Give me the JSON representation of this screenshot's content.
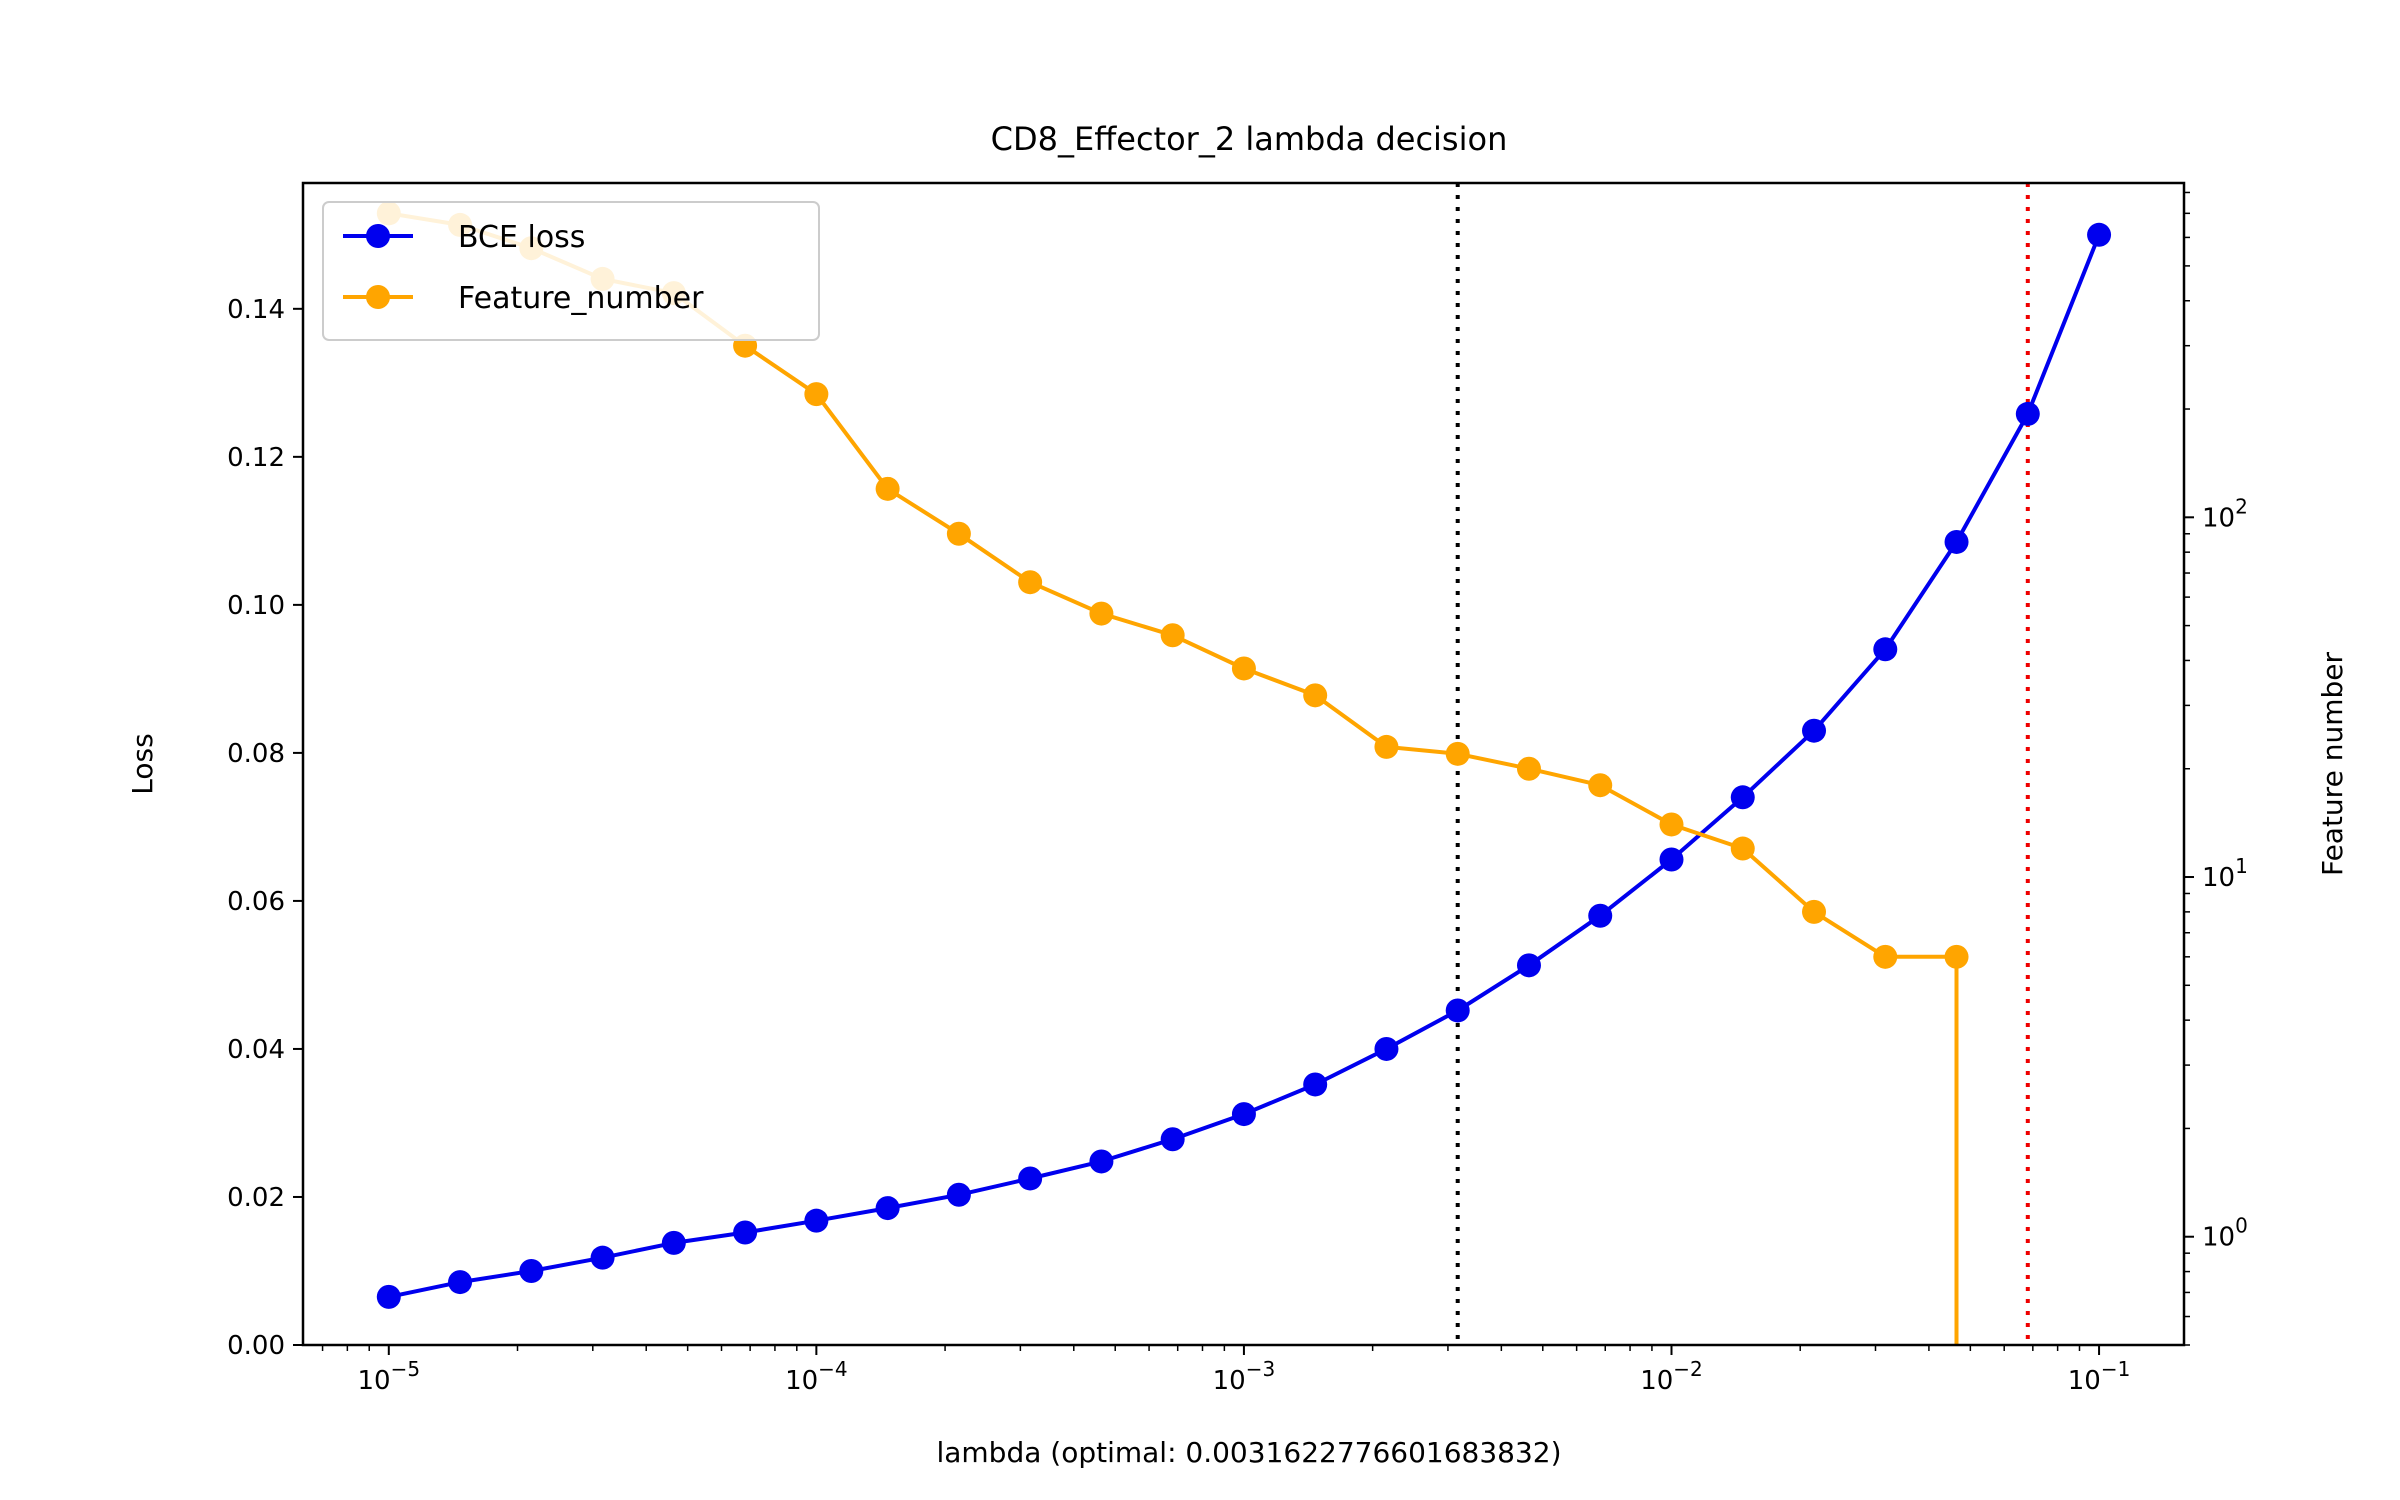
{
  "chart_data": {
    "type": "line",
    "title": "CD8_Effector_2 lambda decision",
    "xlabel": "lambda (optimal: 0.0031622776601683832)",
    "ylabel": "Loss",
    "ylabel_right": "Feature number",
    "x_scale": "log",
    "xlim": [
      6.3e-06,
      0.158
    ],
    "ylim": [
      0,
      0.157
    ],
    "y2_scale": "log",
    "y2lim": [
      0.5,
      850
    ],
    "x_tick_labels": [
      {
        "base": "10",
        "exp": "−5"
      },
      {
        "base": "10",
        "exp": "−4"
      },
      {
        "base": "10",
        "exp": "−3"
      },
      {
        "base": "10",
        "exp": "−2"
      },
      {
        "base": "10",
        "exp": "−1"
      }
    ],
    "y_tick_labels": [
      "0.00",
      "0.02",
      "0.04",
      "0.06",
      "0.08",
      "0.10",
      "0.12",
      "0.14"
    ],
    "y2_tick_labels": [
      {
        "base": "10",
        "exp": "0"
      },
      {
        "base": "10",
        "exp": "1"
      },
      {
        "base": "10",
        "exp": "2"
      }
    ],
    "x": [
      1e-05,
      1.4678e-05,
      2.1544e-05,
      3.1623e-05,
      4.6416e-05,
      6.8129e-05,
      0.0001,
      0.00014678,
      0.00021544,
      0.00031623,
      0.00046416,
      0.00068129,
      0.001,
      0.0014678,
      0.0021544,
      0.0031623,
      0.0046416,
      0.0068129,
      0.01,
      0.014678,
      0.021544,
      0.031623,
      0.046416,
      0.068129,
      0.1
    ],
    "series": [
      {
        "name": "BCE loss",
        "axis": "left",
        "color": "#0000ee",
        "values": [
          0.0065,
          0.0085,
          0.01,
          0.0118,
          0.0138,
          0.0152,
          0.0168,
          0.0185,
          0.0203,
          0.0225,
          0.0248,
          0.0278,
          0.0312,
          0.0352,
          0.04,
          0.0452,
          0.0513,
          0.058,
          0.0656,
          0.074,
          0.083,
          0.094,
          0.1085,
          0.1258,
          0.15
        ]
      },
      {
        "name": "Feature_number",
        "axis": "right",
        "color": "#ffa500",
        "values": [
          700,
          650,
          560,
          460,
          420,
          300,
          220,
          120,
          90,
          66,
          54,
          47,
          38,
          32,
          23,
          22,
          20,
          18,
          14,
          12,
          8,
          6,
          6,
          0,
          0
        ]
      }
    ],
    "vlines": [
      {
        "x": 0.0031622776601683833,
        "color": "#000000",
        "style": "dotted"
      },
      {
        "x": 0.068129,
        "color": "#ee0000",
        "style": "dotted"
      }
    ],
    "legend": "upper-left",
    "grid": false
  }
}
